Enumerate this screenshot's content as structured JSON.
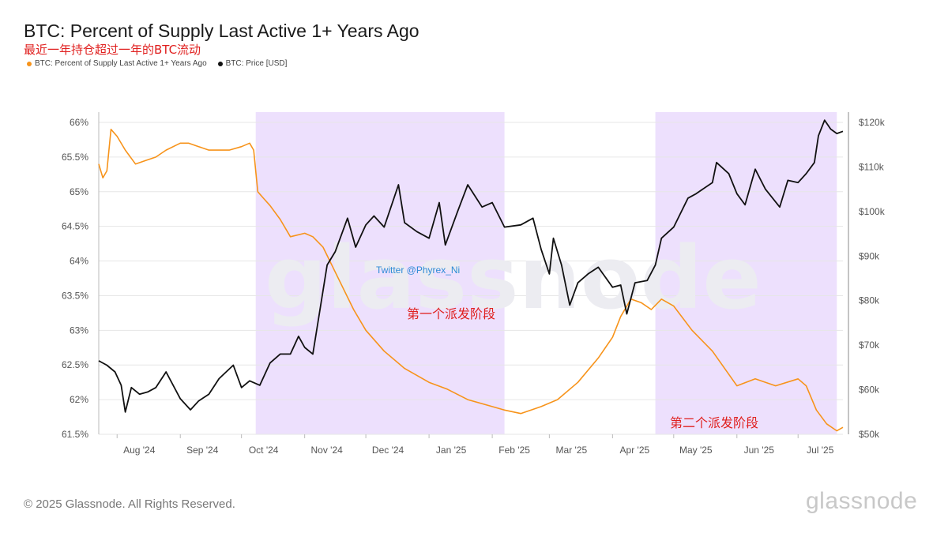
{
  "header": {
    "title": "BTC: Percent of Supply Last Active 1+ Years Ago",
    "subtitle": "最近一年持仓超过一年的BTC流动"
  },
  "legend": [
    {
      "label": "BTC: Percent of Supply Last Active 1+ Years Ago",
      "color": "#f7931a"
    },
    {
      "label": "BTC: Price [USD]",
      "color": "#111111"
    }
  ],
  "footer": {
    "copyright": "© 2025 Glassnode. All Rights Reserved.",
    "logo": "glassnode"
  },
  "chart_data": {
    "type": "line",
    "watermark": "glassnode",
    "x_ticks": [
      "Aug '24",
      "Sep '24",
      "Oct '24",
      "Nov '24",
      "Dec '24",
      "Jan '25",
      "Feb '25",
      "Mar '25",
      "Apr '25",
      "May '25",
      "Jun '25",
      "Jul '25"
    ],
    "x_range": [
      "2024-07-23",
      "2025-07-23"
    ],
    "y_left": {
      "ticks": [
        "66%",
        "65.5%",
        "65%",
        "64.5%",
        "64%",
        "63.5%",
        "63%",
        "62.5%",
        "62%",
        "61.5%"
      ],
      "range": [
        61.5,
        66
      ]
    },
    "y_right": {
      "ticks": [
        "$120k",
        "$110k",
        "$100k",
        "$90k",
        "$80k",
        "$70k",
        "$60k",
        "$50k"
      ],
      "range": [
        50000,
        120000
      ]
    },
    "shaded_periods": [
      {
        "start": "2024-10-08",
        "end": "2025-02-07",
        "label": "第一个派发阶段"
      },
      {
        "start": "2025-04-22",
        "end": "2025-07-20",
        "label": "第二个派发阶段"
      }
    ],
    "annotation": "Twitter @Phyrex_Ni",
    "series": [
      {
        "name": "BTC: Percent of Supply Last Active 1+ Years Ago",
        "color": "#f7931a",
        "x": [
          "2024-07-23",
          "2024-07-25",
          "2024-07-27",
          "2024-07-29",
          "2024-08-01",
          "2024-08-05",
          "2024-08-10",
          "2024-08-15",
          "2024-08-20",
          "2024-08-25",
          "2024-09-01",
          "2024-09-05",
          "2024-09-10",
          "2024-09-15",
          "2024-09-20",
          "2024-09-25",
          "2024-10-01",
          "2024-10-05",
          "2024-10-07",
          "2024-10-09",
          "2024-10-12",
          "2024-10-15",
          "2024-10-20",
          "2024-10-25",
          "2024-11-01",
          "2024-11-05",
          "2024-11-10",
          "2024-11-15",
          "2024-11-20",
          "2024-11-25",
          "2024-12-01",
          "2024-12-10",
          "2024-12-20",
          "2025-01-01",
          "2025-01-10",
          "2025-01-20",
          "2025-02-01",
          "2025-02-07",
          "2025-02-15",
          "2025-02-25",
          "2025-03-05",
          "2025-03-15",
          "2025-03-25",
          "2025-04-01",
          "2025-04-05",
          "2025-04-10",
          "2025-04-15",
          "2025-04-20",
          "2025-04-25",
          "2025-05-01",
          "2025-05-10",
          "2025-05-20",
          "2025-06-01",
          "2025-06-10",
          "2025-06-20",
          "2025-07-01",
          "2025-07-05",
          "2025-07-10",
          "2025-07-15",
          "2025-07-20",
          "2025-07-23"
        ],
        "y": [
          65.4,
          65.2,
          65.3,
          65.9,
          65.8,
          65.6,
          65.4,
          65.45,
          65.5,
          65.6,
          65.7,
          65.7,
          65.65,
          65.6,
          65.6,
          65.6,
          65.65,
          65.7,
          65.6,
          65.0,
          64.9,
          64.8,
          64.6,
          64.35,
          64.4,
          64.35,
          64.2,
          63.9,
          63.6,
          63.3,
          63.0,
          62.7,
          62.45,
          62.25,
          62.15,
          62.0,
          61.9,
          61.85,
          61.8,
          61.9,
          62.0,
          62.25,
          62.6,
          62.9,
          63.2,
          63.45,
          63.4,
          63.3,
          63.45,
          63.35,
          63.0,
          62.7,
          62.2,
          62.3,
          62.2,
          62.3,
          62.2,
          61.85,
          61.65,
          61.55,
          61.6
        ]
      },
      {
        "name": "BTC: Price [USD]",
        "color": "#111111",
        "x": [
          "2024-07-23",
          "2024-07-27",
          "2024-07-31",
          "2024-08-03",
          "2024-08-05",
          "2024-08-08",
          "2024-08-12",
          "2024-08-16",
          "2024-08-20",
          "2024-08-25",
          "2024-09-01",
          "2024-09-06",
          "2024-09-10",
          "2024-09-15",
          "2024-09-20",
          "2024-09-27",
          "2024-10-01",
          "2024-10-05",
          "2024-10-10",
          "2024-10-15",
          "2024-10-20",
          "2024-10-25",
          "2024-10-29",
          "2024-11-01",
          "2024-11-05",
          "2024-11-08",
          "2024-11-12",
          "2024-11-16",
          "2024-11-22",
          "2024-11-26",
          "2024-12-01",
          "2024-12-05",
          "2024-12-10",
          "2024-12-17",
          "2024-12-20",
          "2024-12-26",
          "2025-01-01",
          "2025-01-06",
          "2025-01-09",
          "2025-01-15",
          "2025-01-20",
          "2025-01-27",
          "2025-02-01",
          "2025-02-07",
          "2025-02-15",
          "2025-02-21",
          "2025-02-25",
          "2025-03-01",
          "2025-03-03",
          "2025-03-07",
          "2025-03-11",
          "2025-03-15",
          "2025-03-20",
          "2025-03-25",
          "2025-04-01",
          "2025-04-05",
          "2025-04-08",
          "2025-04-12",
          "2025-04-18",
          "2025-04-22",
          "2025-04-25",
          "2025-05-01",
          "2025-05-08",
          "2025-05-12",
          "2025-05-20",
          "2025-05-22",
          "2025-05-28",
          "2025-06-01",
          "2025-06-05",
          "2025-06-10",
          "2025-06-15",
          "2025-06-22",
          "2025-06-26",
          "2025-07-01",
          "2025-07-05",
          "2025-07-09",
          "2025-07-11",
          "2025-07-14",
          "2025-07-17",
          "2025-07-20",
          "2025-07-23"
        ],
        "y": [
          66500,
          65500,
          64000,
          61000,
          55000,
          60500,
          59000,
          59500,
          60500,
          64000,
          58000,
          55500,
          57500,
          59000,
          62500,
          65500,
          60500,
          62000,
          61000,
          66000,
          68000,
          68000,
          72000,
          69500,
          68000,
          76500,
          88000,
          91000,
          98500,
          92000,
          97000,
          99000,
          96500,
          106000,
          97500,
          95500,
          94000,
          102000,
          92500,
          100000,
          106000,
          101000,
          102000,
          96500,
          97000,
          98500,
          91500,
          86000,
          94000,
          88000,
          79000,
          84000,
          86000,
          87500,
          83000,
          83500,
          77000,
          84000,
          84500,
          88000,
          94000,
          96500,
          103000,
          104000,
          106500,
          111000,
          108500,
          104000,
          101500,
          109500,
          105000,
          101000,
          107000,
          106500,
          108500,
          111000,
          117000,
          120500,
          118500,
          117500,
          118000
        ]
      }
    ]
  }
}
